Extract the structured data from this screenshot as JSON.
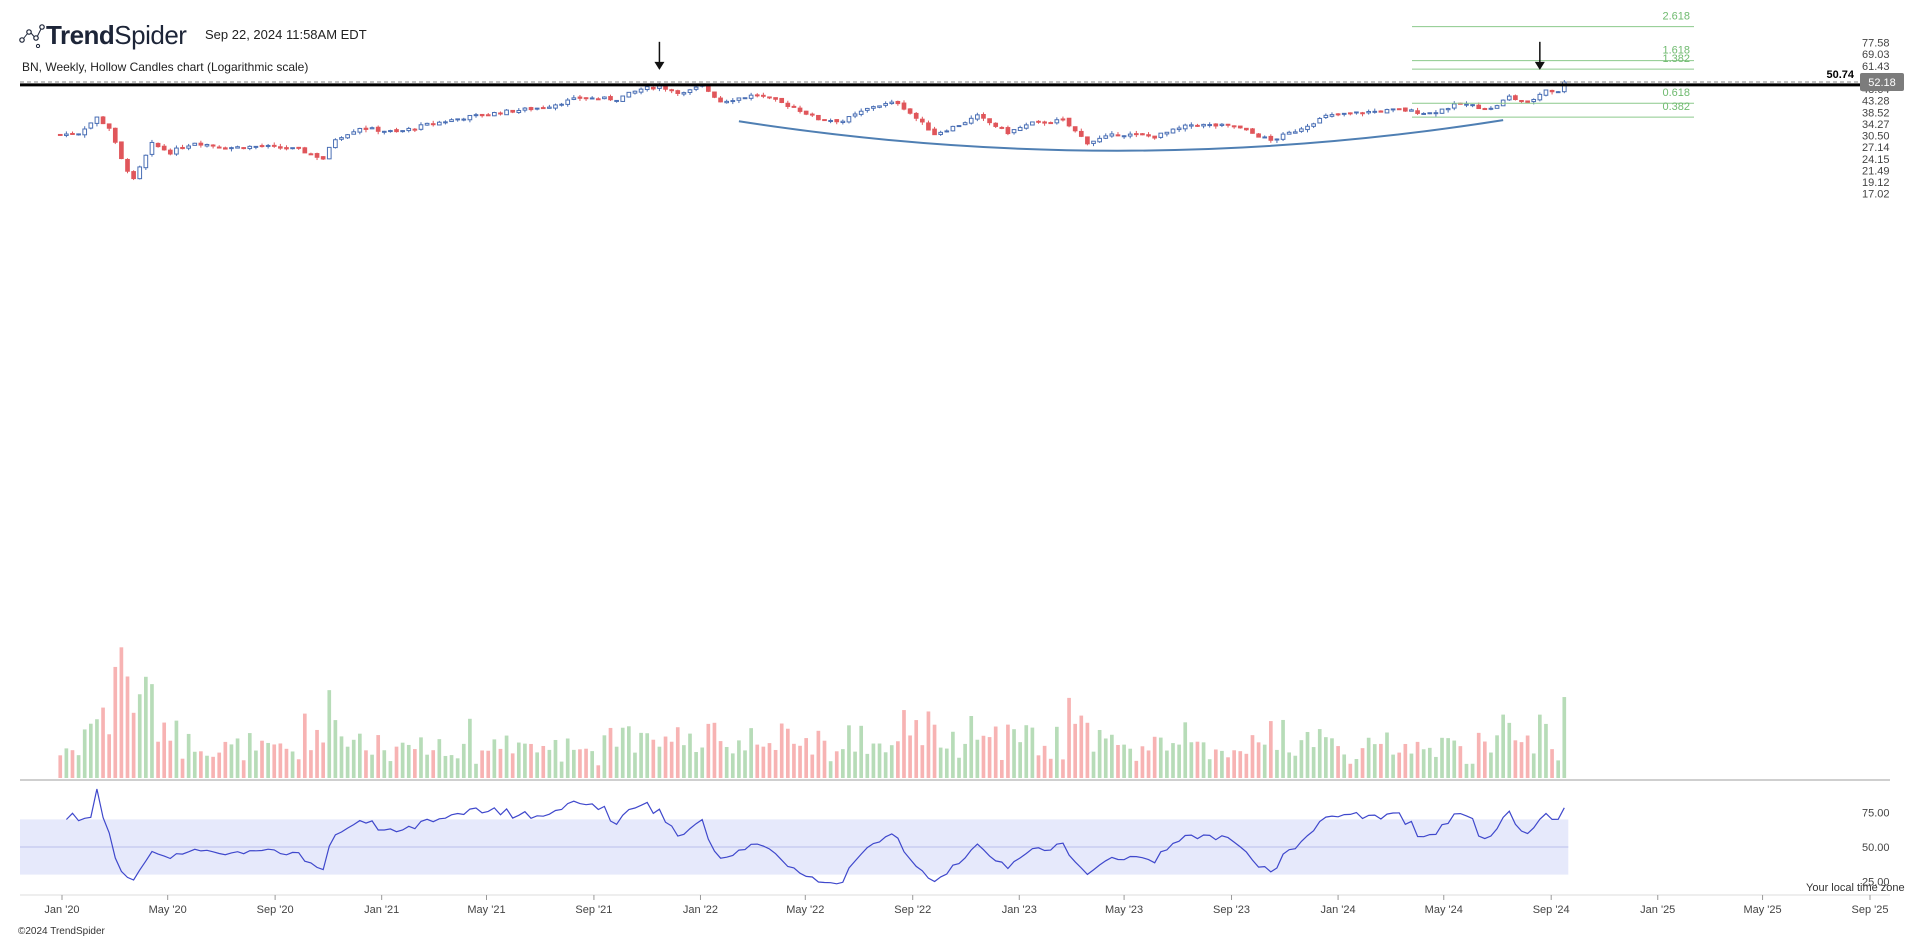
{
  "brand": {
    "logo_icon": "trendspider-dots-icon",
    "name_bold": "Trend",
    "name_regular": "Spider",
    "timestamp": "Sep 22, 2024 11:58AM EDT"
  },
  "footer": {
    "copyright": "©2024 TrendSpider",
    "local_time_zone": "Your local time zone"
  },
  "colors": {
    "up_candle": "#4a6fb5",
    "down_candle": "#e0565b",
    "up_volume": "#b7dcb8",
    "down_volume": "#f7b3b3",
    "rsi_line": "#3f48cc",
    "rsi_band": "#e6e9fb",
    "fib": "#8cc98c",
    "resistance": "#000000",
    "arc": "#4f7fb3"
  },
  "chart_data": {
    "type": "candlestick",
    "title": "BN, Weekly, Hollow Candles chart (Logarithmic scale)",
    "log_scale": true,
    "price_ticks": [
      "77.58",
      "69.03",
      "61.43",
      "54.66",
      "48.64",
      "43.28",
      "38.52",
      "34.27",
      "30.50",
      "27.14",
      "24.15",
      "21.49",
      "19.12",
      "17.02"
    ],
    "x_ticks": [
      "Jan '20",
      "May '20",
      "Sep '20",
      "Jan '21",
      "May '21",
      "Sep '21",
      "Jan '22",
      "May '22",
      "Sep '22",
      "Jan '23",
      "May '23",
      "Sep '23",
      "Jan '24",
      "May '24",
      "Sep '24",
      "Jan '25",
      "May '25",
      "Sep '25"
    ],
    "rsi_ticks": [
      "75.00",
      "50.00",
      "25.00"
    ],
    "rsi_band": [
      30,
      70
    ],
    "current_price": "52.18",
    "resistance_level": "50.74",
    "fib_levels": [
      {
        "label": "2.618",
        "price": 91.0
      },
      {
        "label": "1.618",
        "price": 64.7
      },
      {
        "label": "1.382",
        "price": 59.4
      },
      {
        "label": "0.618",
        "price": 42.2
      },
      {
        "label": "0.382",
        "price": 36.7
      }
    ],
    "arrows": [
      {
        "date": "2021-11-15",
        "label": "top-1"
      },
      {
        "date": "2024-08-19",
        "label": "top-2"
      }
    ],
    "arc": {
      "start_date": "2022-02-14",
      "end_date": "2024-07-08",
      "start_price": 35.2,
      "bottom_price": 26.2,
      "end_price": 35.6
    },
    "series": [
      {
        "date": "2019-12-30",
        "close": 30.8
      },
      {
        "date": "2020-01-20",
        "close": 31.3
      },
      {
        "date": "2020-02-10",
        "close": 36.5
      },
      {
        "date": "2020-02-24",
        "close": 33.0
      },
      {
        "date": "2020-03-09",
        "close": 24.0
      },
      {
        "date": "2020-03-23",
        "close": 19.5
      },
      {
        "date": "2020-04-13",
        "close": 28.0
      },
      {
        "date": "2020-05-04",
        "close": 25.8
      },
      {
        "date": "2020-06-01",
        "close": 28.5
      },
      {
        "date": "2020-07-06",
        "close": 27.0
      },
      {
        "date": "2020-08-17",
        "close": 27.4
      },
      {
        "date": "2020-09-28",
        "close": 26.5
      },
      {
        "date": "2020-10-26",
        "close": 24.2
      },
      {
        "date": "2020-11-09",
        "close": 29.5
      },
      {
        "date": "2020-12-07",
        "close": 33.0
      },
      {
        "date": "2021-01-18",
        "close": 31.5
      },
      {
        "date": "2021-02-22",
        "close": 34.0
      },
      {
        "date": "2021-04-05",
        "close": 36.5
      },
      {
        "date": "2021-05-17",
        "close": 38.5
      },
      {
        "date": "2021-07-05",
        "close": 40.5
      },
      {
        "date": "2021-08-16",
        "close": 44.5
      },
      {
        "date": "2021-09-27",
        "close": 44.0
      },
      {
        "date": "2021-10-25",
        "close": 48.6
      },
      {
        "date": "2021-11-15",
        "close": 50.0
      },
      {
        "date": "2021-12-13",
        "close": 46.5
      },
      {
        "date": "2022-01-03",
        "close": 50.3
      },
      {
        "date": "2022-01-24",
        "close": 43.0
      },
      {
        "date": "2022-03-07",
        "close": 46.0
      },
      {
        "date": "2022-04-18",
        "close": 40.5
      },
      {
        "date": "2022-05-16",
        "close": 36.0
      },
      {
        "date": "2022-06-13",
        "close": 35.3
      },
      {
        "date": "2022-07-18",
        "close": 41.0
      },
      {
        "date": "2022-08-15",
        "close": 42.5
      },
      {
        "date": "2022-09-26",
        "close": 31.0
      },
      {
        "date": "2022-10-24",
        "close": 34.0
      },
      {
        "date": "2022-11-14",
        "close": 37.0
      },
      {
        "date": "2022-12-19",
        "close": 31.5
      },
      {
        "date": "2023-01-16",
        "close": 34.5
      },
      {
        "date": "2023-02-20",
        "close": 35.5
      },
      {
        "date": "2023-03-20",
        "close": 28.5
      },
      {
        "date": "2023-04-24",
        "close": 31.0
      },
      {
        "date": "2023-06-05",
        "close": 30.2
      },
      {
        "date": "2023-07-17",
        "close": 34.0
      },
      {
        "date": "2023-09-04",
        "close": 33.5
      },
      {
        "date": "2023-10-16",
        "close": 29.0
      },
      {
        "date": "2023-11-13",
        "close": 32.0
      },
      {
        "date": "2023-12-18",
        "close": 37.0
      },
      {
        "date": "2024-01-29",
        "close": 38.5
      },
      {
        "date": "2024-03-11",
        "close": 39.5
      },
      {
        "date": "2024-04-15",
        "close": 38.2
      },
      {
        "date": "2024-05-20",
        "close": 42.0
      },
      {
        "date": "2024-06-24",
        "close": 39.8
      },
      {
        "date": "2024-07-15",
        "close": 45.0
      },
      {
        "date": "2024-08-05",
        "close": 42.0
      },
      {
        "date": "2024-08-26",
        "close": 48.5
      },
      {
        "date": "2024-09-09",
        "close": 47.0
      },
      {
        "date": "2024-09-16",
        "close": 52.18
      }
    ]
  }
}
